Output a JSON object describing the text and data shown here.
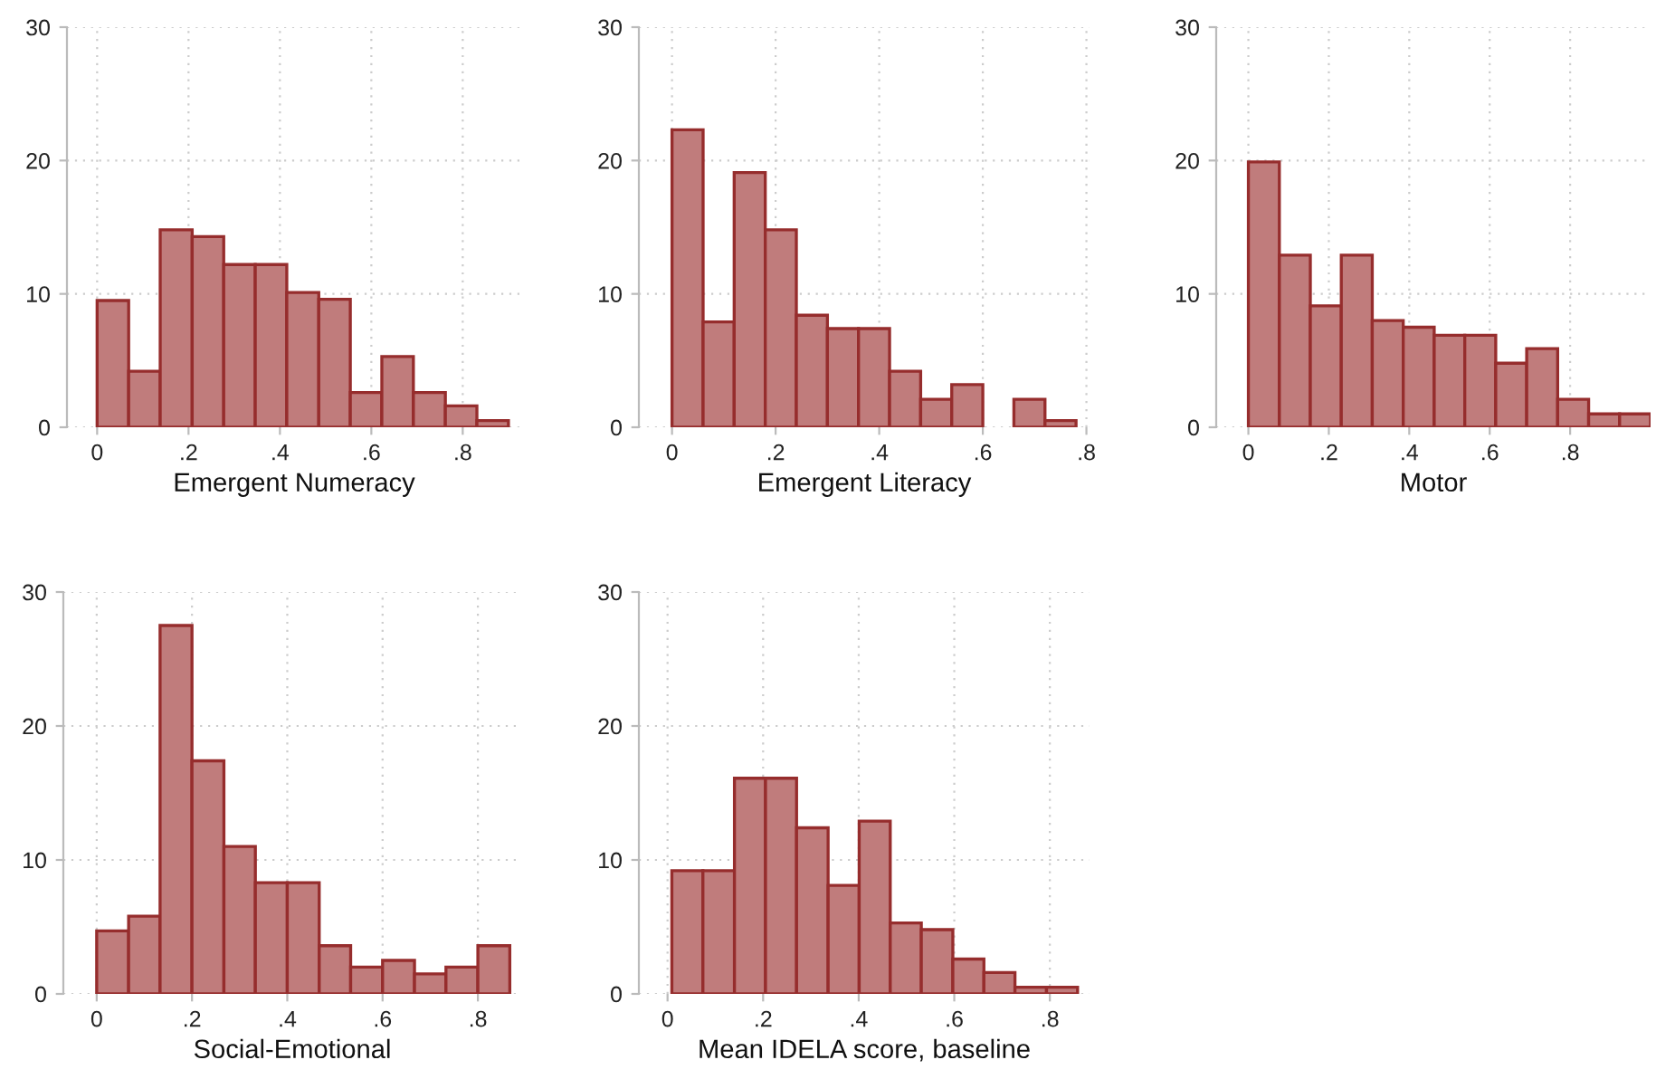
{
  "chart_data": [
    {
      "type": "histogram",
      "xlabel": "Emergent Numeracy",
      "color": "#c07c7c",
      "grid": true,
      "bins": [
        0,
        0.069,
        0.138,
        0.208,
        0.277,
        0.346,
        0.415,
        0.485,
        0.554,
        0.623,
        0.692,
        0.762,
        0.831,
        0.9
      ],
      "values": [
        9.5,
        4.2,
        14.8,
        14.3,
        12.2,
        12.2,
        10.1,
        9.6,
        2.6,
        5.3,
        2.6,
        1.6,
        0.5
      ],
      "xlim": [
        -0.066,
        0.928
      ],
      "xticks": [
        0,
        {
          "value": 0.2,
          "label": ".2"
        },
        {
          "value": 0.4,
          "label": ".4"
        },
        {
          "value": 0.6,
          "label": ".6"
        },
        {
          "value": 0.8,
          "label": ".8"
        }
      ],
      "ylim": [
        0,
        30
      ],
      "yticks": [
        0,
        10,
        20,
        30
      ]
    },
    {
      "type": "histogram",
      "xlabel": "Emergent Literacy",
      "color": "#c07c7c",
      "grid": true,
      "bins": [
        0,
        0.06,
        0.12,
        0.18,
        0.24,
        0.3,
        0.36,
        0.42,
        0.48,
        0.54,
        0.6,
        0.66,
        0.72,
        0.78
      ],
      "values": [
        22.3,
        7.9,
        19.1,
        14.8,
        8.4,
        7.4,
        7.4,
        4.2,
        2.1,
        3.2,
        0,
        2.1,
        0.5
      ],
      "xlim": [
        -0.064,
        0.806
      ],
      "xticks": [
        0,
        {
          "value": 0.2,
          "label": ".2"
        },
        {
          "value": 0.4,
          "label": ".4"
        },
        {
          "value": 0.6,
          "label": ".6"
        },
        {
          "value": 0.8,
          "label": ".8"
        }
      ],
      "ylim": [
        0,
        30
      ],
      "yticks": [
        0,
        10,
        20,
        30
      ]
    },
    {
      "type": "histogram",
      "xlabel": "Motor",
      "color": "#c07c7c",
      "grid": true,
      "bins": [
        0,
        0.077,
        0.154,
        0.231,
        0.308,
        0.385,
        0.462,
        0.538,
        0.615,
        0.692,
        0.769,
        0.846,
        0.923,
        1.0
      ],
      "values": [
        19.9,
        12.9,
        9.1,
        12.9,
        8.0,
        7.5,
        6.9,
        6.9,
        4.8,
        5.9,
        2.1,
        1.0,
        1.0
      ],
      "xlim": [
        -0.08,
        1.0
      ],
      "xticks": [
        0,
        {
          "value": 0.2,
          "label": ".2"
        },
        {
          "value": 0.4,
          "label": ".4"
        },
        {
          "value": 0.6,
          "label": ".6"
        },
        {
          "value": 0.8,
          "label": ".8"
        }
      ],
      "ylim": [
        0,
        30
      ],
      "yticks": [
        0,
        10,
        20,
        30
      ]
    },
    {
      "type": "histogram",
      "xlabel": "Social-Emotional",
      "color": "#c07c7c",
      "grid": true,
      "bins": [
        0,
        0.067,
        0.133,
        0.2,
        0.267,
        0.333,
        0.4,
        0.467,
        0.533,
        0.6,
        0.667,
        0.733,
        0.8,
        0.867
      ],
      "values": [
        4.7,
        5.8,
        27.5,
        17.4,
        11.0,
        8.3,
        8.3,
        3.6,
        2.0,
        2.5,
        1.5,
        2.0,
        3.6
      ],
      "xlim": [
        -0.07,
        0.891
      ],
      "xticks": [
        0,
        {
          "value": 0.2,
          "label": ".2"
        },
        {
          "value": 0.4,
          "label": ".4"
        },
        {
          "value": 0.6,
          "label": ".6"
        },
        {
          "value": 0.8,
          "label": ".8"
        }
      ],
      "ylim": [
        0,
        30
      ],
      "yticks": [
        0,
        10,
        20,
        30
      ]
    },
    {
      "type": "histogram",
      "xlabel": "Mean IDELA score, baseline",
      "color": "#c07c7c",
      "grid": true,
      "bins": [
        0.009,
        0.074,
        0.14,
        0.205,
        0.27,
        0.336,
        0.401,
        0.466,
        0.531,
        0.597,
        0.662,
        0.727,
        0.793,
        0.858
      ],
      "values": [
        9.2,
        9.2,
        16.1,
        16.1,
        12.4,
        8.1,
        12.9,
        5.3,
        4.8,
        2.6,
        1.6,
        0.5,
        0.5
      ],
      "xlim": [
        -0.06,
        0.883
      ],
      "xticks": [
        0,
        {
          "value": 0.2,
          "label": ".2"
        },
        {
          "value": 0.4,
          "label": ".4"
        },
        {
          "value": 0.6,
          "label": ".6"
        },
        {
          "value": 0.8,
          "label": ".8"
        }
      ],
      "ylim": [
        0,
        30
      ],
      "yticks": [
        0,
        10,
        20,
        30
      ]
    }
  ]
}
